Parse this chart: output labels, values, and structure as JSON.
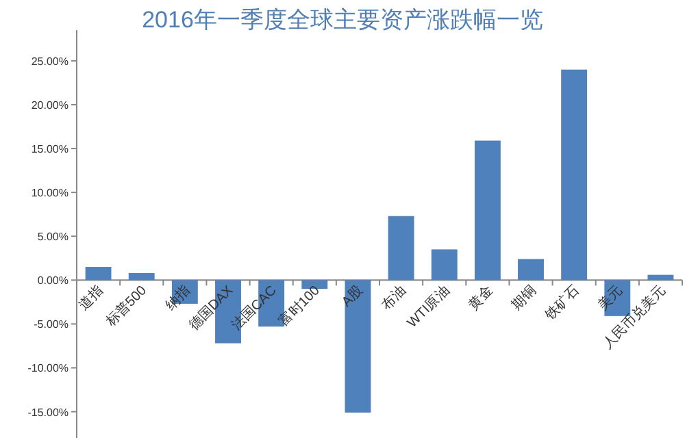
{
  "chart_data": {
    "type": "bar",
    "title": "2016年一季度全球主要资产涨跌幅一览",
    "categories": [
      "道指",
      "标普500",
      "纳指",
      "德国DAX",
      "法国CAC",
      "富时100",
      "A股",
      "布油",
      "WTI原油",
      "黄金",
      "期铜",
      "铁矿石",
      "美元",
      "人民币兑美元"
    ],
    "values": [
      1.5,
      0.8,
      -2.7,
      -7.2,
      -5.3,
      -1.0,
      -15.1,
      7.3,
      3.5,
      15.9,
      2.4,
      24.0,
      -4.1,
      0.6
    ],
    "color": "#4f81bd",
    "ylim": [
      -18,
      28.5
    ],
    "yticks": [
      {
        "value": -15,
        "label": "-15.00%"
      },
      {
        "value": -10,
        "label": "-10.00%"
      },
      {
        "value": -5,
        "label": "-5.00%"
      },
      {
        "value": 0,
        "label": "0.00%"
      },
      {
        "value": 5,
        "label": "5.00%"
      },
      {
        "value": 10,
        "label": "10.00%"
      },
      {
        "value": 15,
        "label": "15.00%"
      },
      {
        "value": 20,
        "label": "20.00%"
      },
      {
        "value": 25,
        "label": "25.00%"
      }
    ],
    "grid": false
  }
}
